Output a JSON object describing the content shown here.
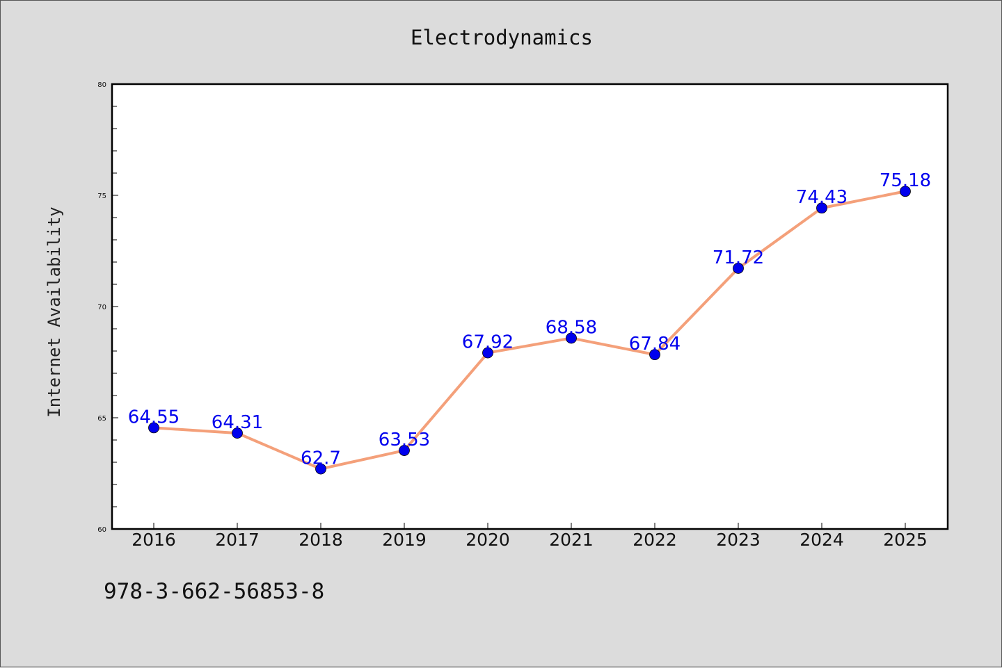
{
  "chart_data": {
    "type": "line",
    "title": "Electrodynamics",
    "xlabel": "",
    "ylabel": "Internet Availability",
    "categories": [
      "2016",
      "2017",
      "2018",
      "2019",
      "2020",
      "2021",
      "2022",
      "2023",
      "2024",
      "2025"
    ],
    "series": [
      {
        "values": [
          64.55,
          64.31,
          62.7,
          63.53,
          67.92,
          68.58,
          67.84,
          71.72,
          74.43,
          75.18
        ],
        "labels": [
          "64.55",
          "64.31",
          "62.7",
          "63.53",
          "67.92",
          "68.58",
          "67.84",
          "71.72",
          "74.43",
          "75.18"
        ],
        "line_color": "#f4a07a",
        "marker_color": "#0000ee",
        "label_color": "#0000ee"
      }
    ],
    "ylim": [
      60,
      80
    ],
    "yticks": [
      "60",
      "65",
      "70",
      "75",
      "80"
    ],
    "grid": false,
    "legend": "none"
  },
  "footer": {
    "code": "978-3-662-56853-8"
  }
}
